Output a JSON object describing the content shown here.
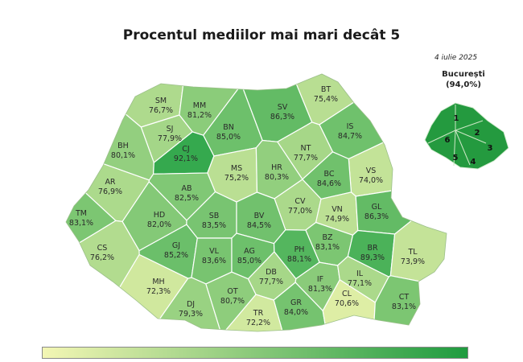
{
  "title": "Procentul mediilor mai mari decât 5",
  "date": "4 iulie 2025",
  "bucuresti": {
    "name": "București",
    "value": "(94,0%)",
    "sectors": [
      "1",
      "2",
      "3",
      "4",
      "5",
      "6"
    ]
  },
  "counties": [
    {
      "code": "SM",
      "value": "76,7%",
      "pct": 76.7
    },
    {
      "code": "MM",
      "value": "81,2%",
      "pct": 81.2
    },
    {
      "code": "SV",
      "value": "86,3%",
      "pct": 86.3
    },
    {
      "code": "BT",
      "value": "75,4%",
      "pct": 75.4
    },
    {
      "code": "SJ",
      "value": "77,9%",
      "pct": 77.9
    },
    {
      "code": "BN",
      "value": "85,0%",
      "pct": 85.0
    },
    {
      "code": "IS",
      "value": "84,7%",
      "pct": 84.7
    },
    {
      "code": "BH",
      "value": "80,1%",
      "pct": 80.1
    },
    {
      "code": "CJ",
      "value": "92,1%",
      "pct": 92.1
    },
    {
      "code": "NT",
      "value": "77,7%",
      "pct": 77.7
    },
    {
      "code": "MS",
      "value": "75,2%",
      "pct": 75.2
    },
    {
      "code": "HR",
      "value": "80,3%",
      "pct": 80.3
    },
    {
      "code": "VS",
      "value": "74,0%",
      "pct": 74.0
    },
    {
      "code": "AR",
      "value": "76,9%",
      "pct": 76.9
    },
    {
      "code": "AB",
      "value": "82,5%",
      "pct": 82.5
    },
    {
      "code": "BC",
      "value": "84,6%",
      "pct": 84.6
    },
    {
      "code": "CV",
      "value": "77,0%",
      "pct": 77.0
    },
    {
      "code": "VN",
      "value": "74,9%",
      "pct": 74.9
    },
    {
      "code": "GL",
      "value": "86,3%",
      "pct": 86.3
    },
    {
      "code": "TM",
      "value": "83,1%",
      "pct": 83.1
    },
    {
      "code": "HD",
      "value": "82,0%",
      "pct": 82.0
    },
    {
      "code": "SB",
      "value": "83,5%",
      "pct": 83.5
    },
    {
      "code": "BV",
      "value": "84,5%",
      "pct": 84.5
    },
    {
      "code": "BZ",
      "value": "83,1%",
      "pct": 83.1
    },
    {
      "code": "CS",
      "value": "76,2%",
      "pct": 76.2
    },
    {
      "code": "GJ",
      "value": "85,2%",
      "pct": 85.2
    },
    {
      "code": "VL",
      "value": "83,6%",
      "pct": 83.6
    },
    {
      "code": "AG",
      "value": "85,0%",
      "pct": 85.0
    },
    {
      "code": "PH",
      "value": "88,1%",
      "pct": 88.1
    },
    {
      "code": "BR",
      "value": "89,3%",
      "pct": 89.3
    },
    {
      "code": "TL",
      "value": "73,9%",
      "pct": 73.9
    },
    {
      "code": "MH",
      "value": "72,3%",
      "pct": 72.3
    },
    {
      "code": "DB",
      "value": "77,7%",
      "pct": 77.7
    },
    {
      "code": "IF",
      "value": "81,3%",
      "pct": 81.3
    },
    {
      "code": "IL",
      "value": "77,1%",
      "pct": 77.1
    },
    {
      "code": "DJ",
      "value": "79,3%",
      "pct": 79.3
    },
    {
      "code": "OT",
      "value": "80,7%",
      "pct": 80.7
    },
    {
      "code": "GR",
      "value": "84,0%",
      "pct": 84.0
    },
    {
      "code": "CL",
      "value": "70,6%",
      "pct": 70.6
    },
    {
      "code": "CT",
      "value": "83,1%",
      "pct": 83.1
    },
    {
      "code": "TR",
      "value": "72,2%",
      "pct": 72.2
    }
  ],
  "colors": {
    "scale_low": "#f2f6b0",
    "scale_high": "#2ea64a",
    "border": "#ffffff",
    "bucuresti_fill": "#249a3f"
  },
  "legend": {
    "from_color": "#f3f6b4",
    "to_color": "#1f9b3f"
  }
}
